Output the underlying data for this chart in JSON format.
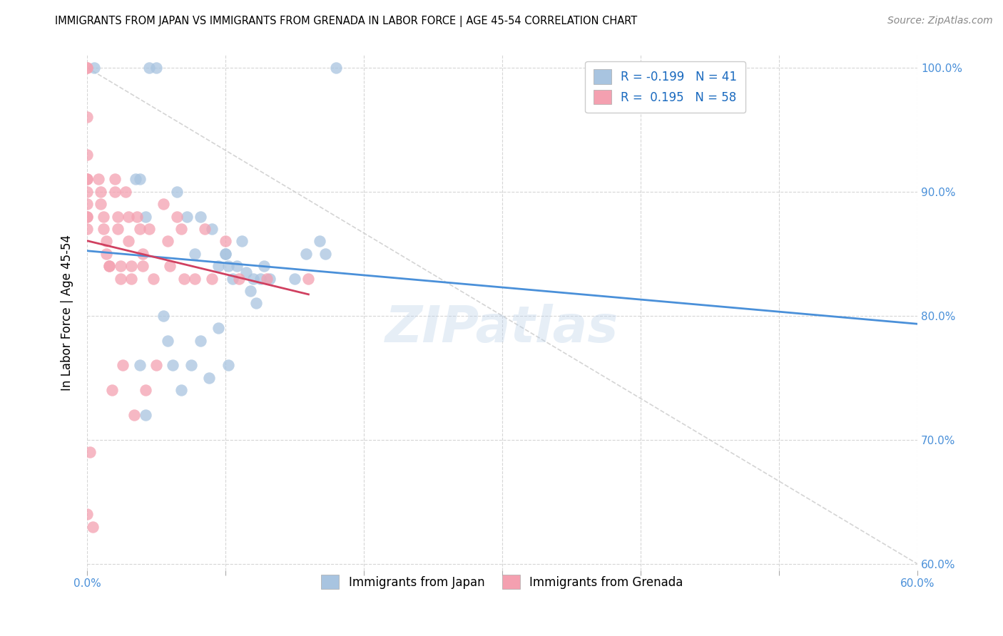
{
  "title": "IMMIGRANTS FROM JAPAN VS IMMIGRANTS FROM GRENADA IN LABOR FORCE | AGE 45-54 CORRELATION CHART",
  "source": "Source: ZipAtlas.com",
  "ylabel": "In Labor Force | Age 45-54",
  "x_tick_positions": [
    0.0,
    0.1,
    0.2,
    0.3,
    0.4,
    0.5,
    0.6
  ],
  "x_tick_labels": [
    "0.0%",
    "",
    "",
    "",
    "",
    "",
    "60.0%"
  ],
  "y_tick_positions": [
    0.6,
    0.7,
    0.8,
    0.9,
    1.0
  ],
  "y_tick_labels": [
    "60.0%",
    "70.0%",
    "80.0%",
    "90.0%",
    "100.0%"
  ],
  "japan_R": -0.199,
  "japan_N": 41,
  "grenada_R": 0.195,
  "grenada_N": 58,
  "japan_color": "#a8c4e0",
  "grenada_color": "#f4a0b0",
  "japan_line_color": "#4a90d9",
  "grenada_line_color": "#d04060",
  "diagonal_color": "#d0d0d0",
  "watermark": "ZIPatlas",
  "xlim": [
    0.0,
    0.6
  ],
  "ylim": [
    0.595,
    1.01
  ],
  "japan_scatter_x": [
    0.005,
    0.045,
    0.05,
    0.18,
    0.035,
    0.038,
    0.042,
    0.065,
    0.072,
    0.078,
    0.082,
    0.09,
    0.095,
    0.1,
    0.102,
    0.105,
    0.112,
    0.118,
    0.122,
    0.128,
    0.132,
    0.15,
    0.158,
    0.168,
    0.172,
    0.1,
    0.108,
    0.115,
    0.12,
    0.125,
    0.038,
    0.042,
    0.055,
    0.058,
    0.062,
    0.068,
    0.075,
    0.082,
    0.088,
    0.095,
    0.102
  ],
  "japan_scatter_y": [
    1.0,
    1.0,
    1.0,
    1.0,
    0.91,
    0.91,
    0.88,
    0.9,
    0.88,
    0.85,
    0.88,
    0.87,
    0.84,
    0.85,
    0.84,
    0.83,
    0.86,
    0.82,
    0.81,
    0.84,
    0.83,
    0.83,
    0.85,
    0.86,
    0.85,
    0.85,
    0.84,
    0.835,
    0.83,
    0.83,
    0.76,
    0.72,
    0.8,
    0.78,
    0.76,
    0.74,
    0.76,
    0.78,
    0.75,
    0.79,
    0.76
  ],
  "grenada_scatter_x": [
    0.0,
    0.0,
    0.0,
    0.0,
    0.0,
    0.0,
    0.0,
    0.0,
    0.0,
    0.0,
    0.0,
    0.0,
    0.008,
    0.01,
    0.01,
    0.012,
    0.012,
    0.014,
    0.014,
    0.016,
    0.016,
    0.018,
    0.02,
    0.02,
    0.022,
    0.022,
    0.024,
    0.024,
    0.026,
    0.028,
    0.03,
    0.03,
    0.032,
    0.032,
    0.034,
    0.036,
    0.038,
    0.04,
    0.04,
    0.042,
    0.045,
    0.048,
    0.05,
    0.055,
    0.058,
    0.06,
    0.065,
    0.068,
    0.07,
    0.078,
    0.085,
    0.09,
    0.1,
    0.11,
    0.13,
    0.16,
    0.002,
    0.004
  ],
  "grenada_scatter_y": [
    1.0,
    1.0,
    0.96,
    0.93,
    0.91,
    0.91,
    0.9,
    0.89,
    0.88,
    0.88,
    0.87,
    0.64,
    0.91,
    0.9,
    0.89,
    0.88,
    0.87,
    0.86,
    0.85,
    0.84,
    0.84,
    0.74,
    0.91,
    0.9,
    0.88,
    0.87,
    0.84,
    0.83,
    0.76,
    0.9,
    0.88,
    0.86,
    0.84,
    0.83,
    0.72,
    0.88,
    0.87,
    0.85,
    0.84,
    0.74,
    0.87,
    0.83,
    0.76,
    0.89,
    0.86,
    0.84,
    0.88,
    0.87,
    0.83,
    0.83,
    0.87,
    0.83,
    0.86,
    0.83,
    0.83,
    0.83,
    0.69,
    0.63
  ]
}
